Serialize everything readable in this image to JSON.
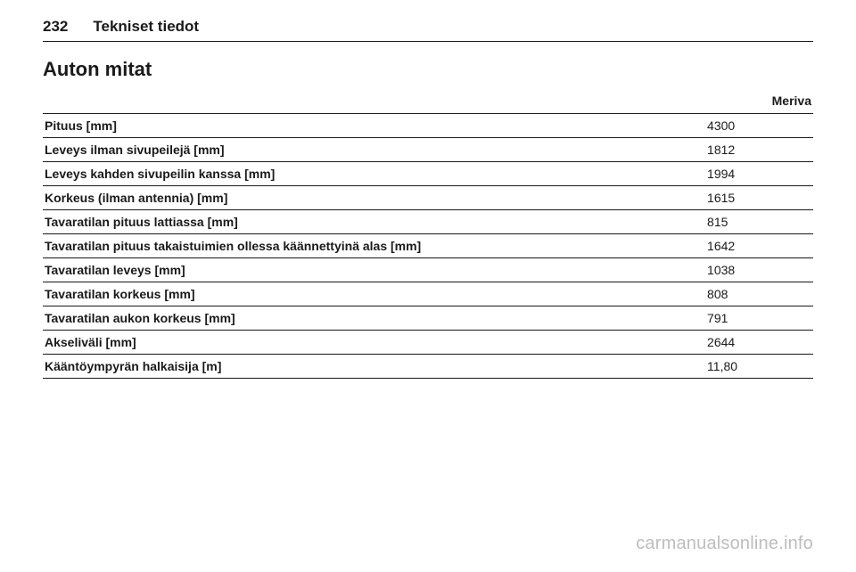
{
  "header": {
    "page_number": "232",
    "chapter": "Tekniset tiedot"
  },
  "section": {
    "title": "Auton mitat"
  },
  "table": {
    "columns": {
      "label": "",
      "value_header": "Meriva"
    },
    "rows": [
      {
        "label": "Pituus [mm]",
        "value": "4300"
      },
      {
        "label": "Leveys ilman sivupeilejä [mm]",
        "value": "1812"
      },
      {
        "label": "Leveys kahden sivupeilin kanssa [mm]",
        "value": "1994"
      },
      {
        "label": "Korkeus (ilman antennia) [mm]",
        "value": "1615"
      },
      {
        "label": "Tavaratilan pituus lattiassa [mm]",
        "value": "815"
      },
      {
        "label": "Tavaratilan pituus takaistuimien ollessa käännettyinä alas [mm]",
        "value": "1642"
      },
      {
        "label": "Tavaratilan leveys [mm]",
        "value": "1038"
      },
      {
        "label": "Tavaratilan korkeus [mm]",
        "value": "808"
      },
      {
        "label": "Tavaratilan aukon korkeus [mm]",
        "value": "791"
      },
      {
        "label": "Akseliväli [mm]",
        "value": "2644"
      },
      {
        "label": "Kääntöympyrän halkaisija [m]",
        "value": "11,80"
      }
    ]
  },
  "watermark": "carmanualsonline.info"
}
